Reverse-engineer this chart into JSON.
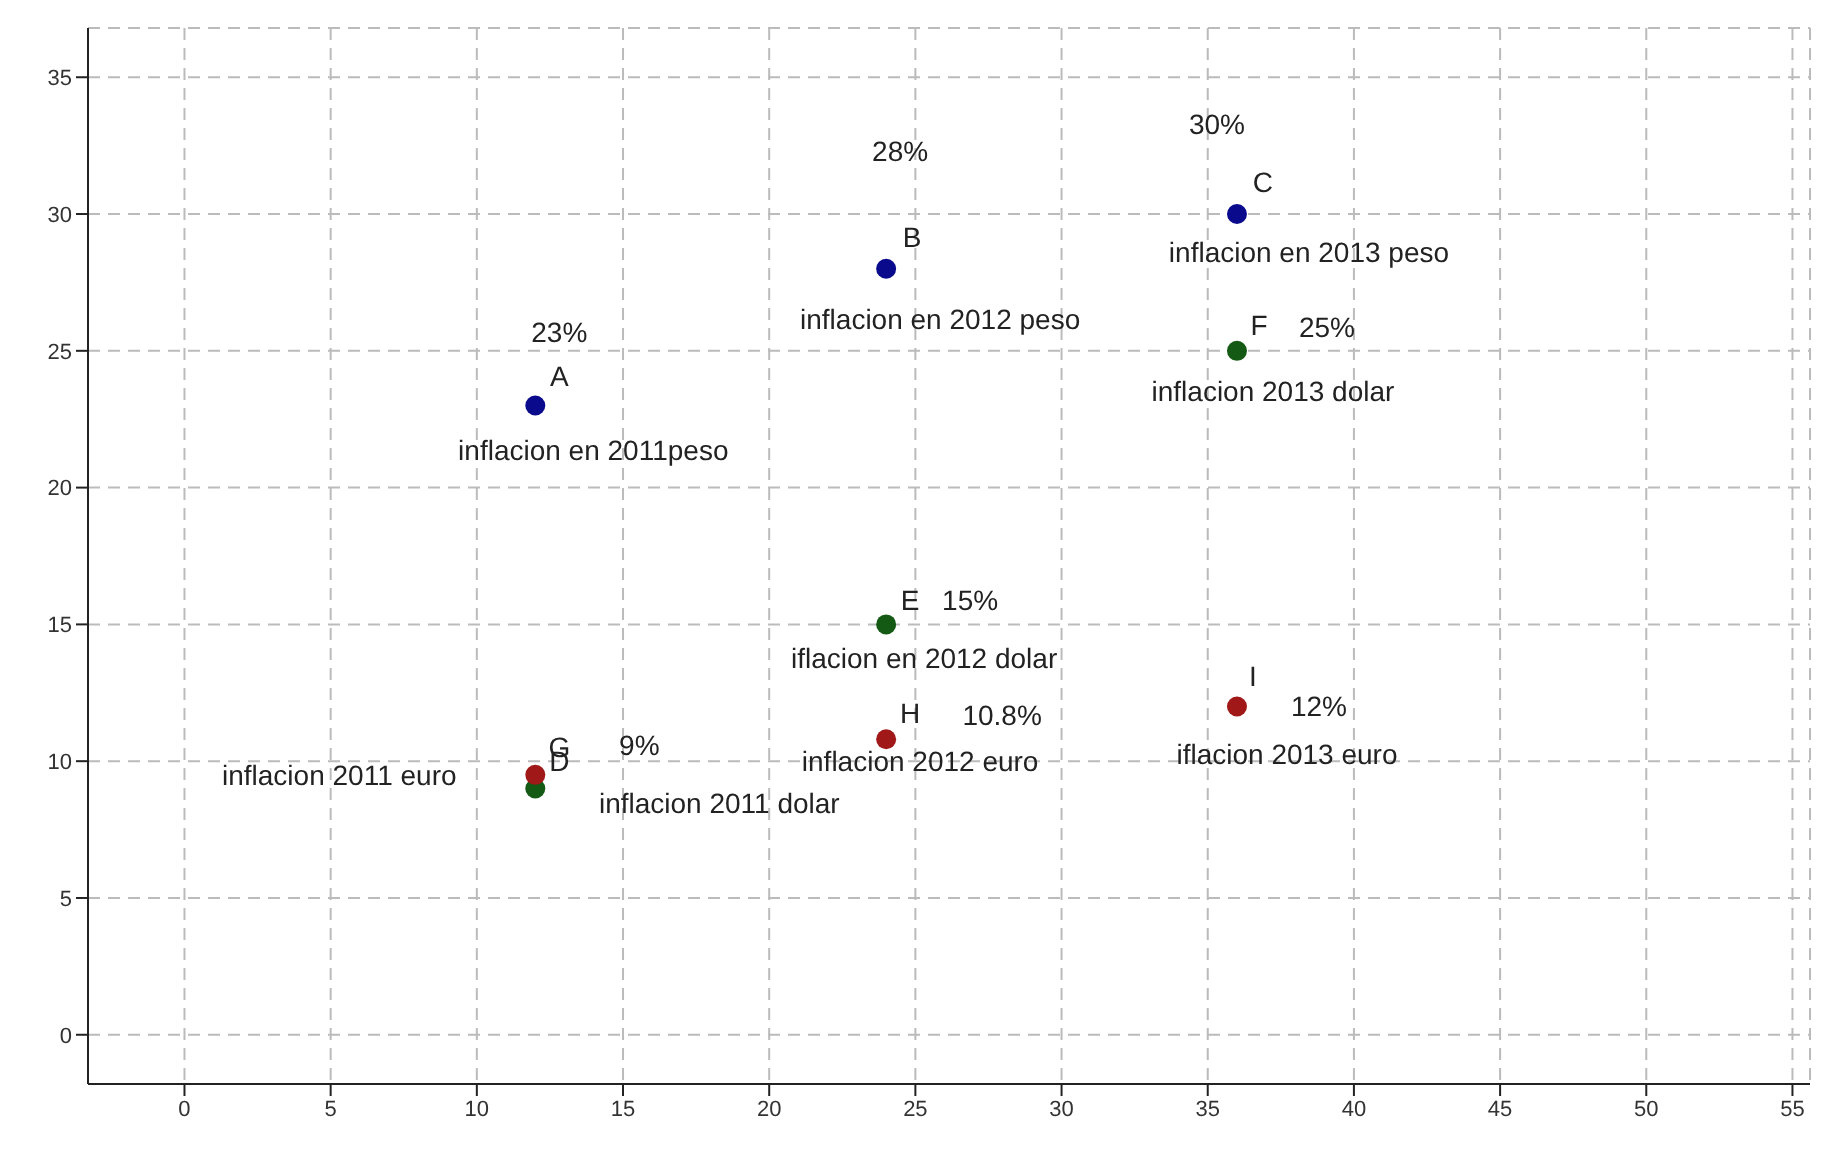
{
  "chart_data": {
    "type": "scatter",
    "xlim": [
      -3.3,
      55.6
    ],
    "ylim": [
      -1.8,
      36.8
    ],
    "xticks": [
      0,
      5,
      10,
      15,
      20,
      25,
      30,
      35,
      40,
      45,
      50,
      55
    ],
    "yticks": [
      0,
      5,
      10,
      15,
      20,
      25,
      30,
      35
    ],
    "grid": true,
    "marker": "circle",
    "series": [
      {
        "color": "#0a0a8c",
        "x": [
          12,
          24,
          36
        ],
        "values": [
          23,
          28,
          30
        ]
      },
      {
        "color": "#145a14",
        "x": [
          12,
          24,
          36
        ],
        "values": [
          9,
          15,
          25
        ]
      },
      {
        "color": "#a01818",
        "x": [
          12,
          24,
          36
        ],
        "values": [
          9.5,
          10.8,
          12
        ]
      }
    ],
    "annotations": [
      {
        "text": "A",
        "x": 12,
        "y": 23
      },
      {
        "text": "23%",
        "x": 12,
        "y": 23
      },
      {
        "text": "inflacion en 2011peso",
        "x": 12,
        "y": 23
      },
      {
        "text": "B",
        "x": 24,
        "y": 28
      },
      "28%",
      {
        "text": "inflacion en 2012  peso",
        "x": 24,
        "y": 28
      },
      {
        "text": "C",
        "x": 36,
        "y": 30
      },
      {
        "text": "30%",
        "x": 36,
        "y": 30
      },
      {
        "text": "inflacion en 2013 peso",
        "x": 36,
        "y": 30
      },
      {
        "text": "F",
        "x": 36,
        "y": 25
      },
      {
        "text": "25%",
        "x": 36,
        "y": 25
      },
      {
        "text": "inflacion 2013 dolar",
        "x": 36,
        "y": 25
      },
      {
        "text": "E",
        "x": 24,
        "y": 15
      },
      {
        "text": "15%",
        "x": 24,
        "y": 15
      },
      {
        "text": "iflacion en 2012 dolar",
        "x": 24,
        "y": 15
      },
      {
        "text": "H",
        "x": 24,
        "y": 10.8
      },
      {
        "text": "10.8%",
        "x": 24,
        "y": 10.8
      },
      {
        "text": "inflacion 2012 euro",
        "x": 24,
        "y": 10.8
      },
      {
        "text": "I",
        "x": 36,
        "y": 12
      },
      {
        "text": "12%",
        "x": 36,
        "y": 12
      },
      {
        "text": "iflacion 2013 euro",
        "x": 36,
        "y": 12
      },
      {
        "text": "G",
        "x": 12,
        "y": 9.5
      },
      {
        "text": "D",
        "x": 12,
        "y": 9
      },
      "9%",
      {
        "text": "inflacion 2011 euro",
        "x": 12,
        "y": 9.5
      },
      {
        "text": "inflacion 2011 dolar",
        "x": 12,
        "y": 9
      }
    ]
  }
}
